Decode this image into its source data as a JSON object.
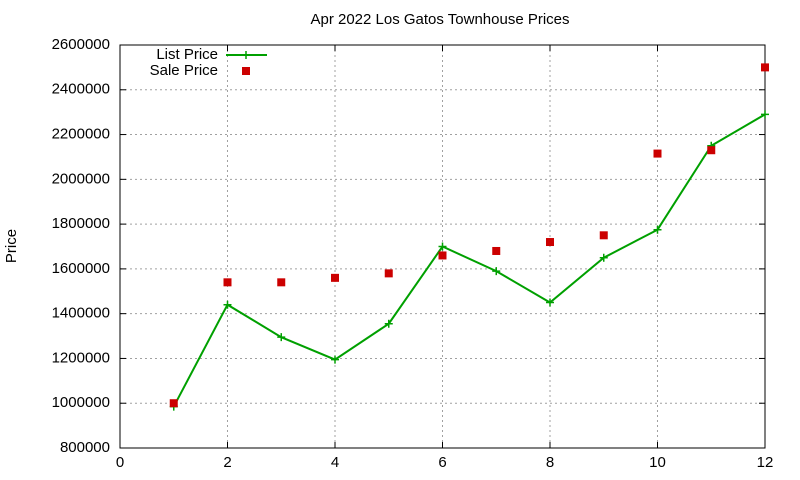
{
  "chart_data": {
    "type": "line",
    "title": "Apr 2022 Los Gatos Townhouse Prices",
    "y_label": "Price",
    "x": [
      1,
      2,
      3,
      4,
      5,
      6,
      7,
      8,
      9,
      10,
      11,
      12
    ],
    "series": [
      {
        "name": "List Price",
        "color": "#00a000",
        "line": true,
        "marker": "plus",
        "values": [
          985000,
          1440000,
          1295000,
          1195000,
          1355000,
          1700000,
          1590000,
          1450000,
          1650000,
          1775000,
          2150000,
          2290000
        ]
      },
      {
        "name": "Sale Price",
        "color": "#cc0000",
        "line": false,
        "marker": "square",
        "values": [
          1000000,
          1540000,
          1540000,
          1560000,
          1580000,
          1660000,
          1680000,
          1720000,
          1750000,
          2115000,
          2130000,
          2500000
        ]
      }
    ],
    "xlim": [
      0,
      12
    ],
    "xticks": [
      0,
      2,
      4,
      6,
      8,
      10,
      12
    ],
    "ylim": [
      800000,
      2600000
    ],
    "yticks": [
      800000,
      1000000,
      1200000,
      1400000,
      1600000,
      1800000,
      2000000,
      2200000,
      2400000,
      2600000
    ],
    "grid": true,
    "legend": "top-left"
  }
}
